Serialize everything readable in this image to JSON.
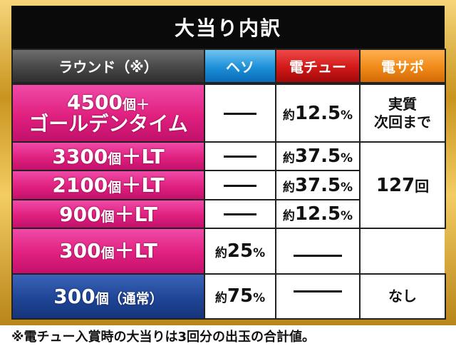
{
  "title": "大当り内訳",
  "headers": {
    "round": "ラウンド（※）",
    "heso": "ヘソ",
    "denchu": "電チュー",
    "densapo": "電サポ"
  },
  "rows": [
    {
      "label_main": "4500",
      "label_unit": "個＋",
      "label_line2": "ゴールデンタイム",
      "heso": "",
      "denchu_prefix": "約",
      "denchu_num": "12.5",
      "denchu_pct": "%",
      "densapo_line1": "実質",
      "densapo_line2": "次回まで"
    },
    {
      "label_main": "3300",
      "label_unit": "個",
      "label_tail": "＋LT",
      "heso": "",
      "denchu_prefix": "約",
      "denchu_num": "37.5",
      "denchu_pct": "%"
    },
    {
      "label_main": "2100",
      "label_unit": "個",
      "label_tail": "＋LT",
      "heso": "",
      "denchu_prefix": "約",
      "denchu_num": "37.5",
      "denchu_pct": "%"
    },
    {
      "label_main": "900",
      "label_unit": "個",
      "label_tail": "＋LT",
      "heso": "",
      "denchu_prefix": "約",
      "denchu_num": "12.5",
      "denchu_pct": "%"
    },
    {
      "label_main": "300",
      "label_unit": "個",
      "label_tail": "＋LT",
      "heso_prefix": "約",
      "heso_num": "25",
      "heso_pct": "%"
    },
    {
      "label_main": "300",
      "label_unit": "個（通常）",
      "heso_prefix": "約",
      "heso_num": "75",
      "heso_pct": "%",
      "densapo": "なし"
    }
  ],
  "densapo_lt": {
    "num": "127",
    "unit": "回"
  },
  "footnote": "※電チュー入賞時の大当りは3回分の出玉の合計値。"
}
